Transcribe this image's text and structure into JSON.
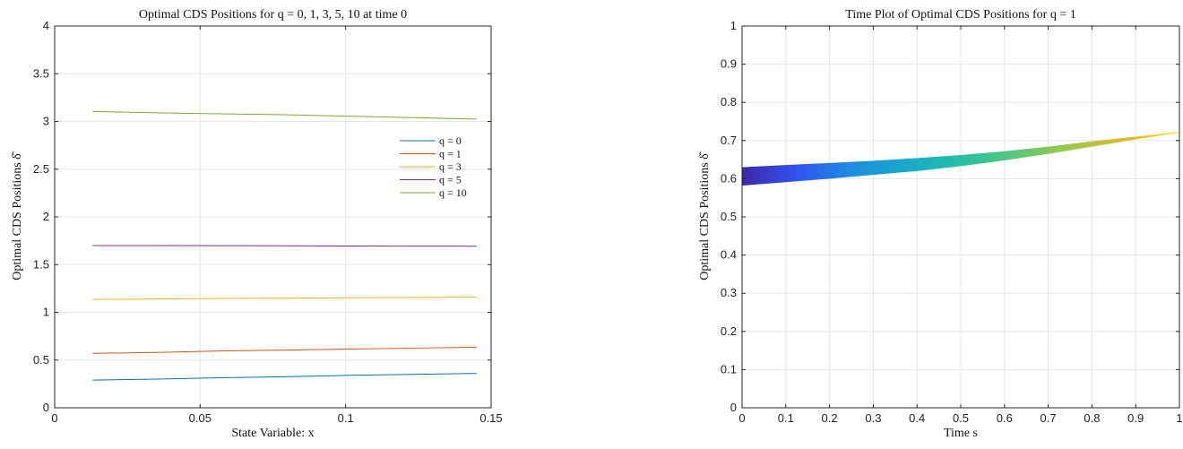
{
  "chart_data": [
    {
      "type": "line",
      "title": "Optimal CDS Positions for q = 0, 1, 3, 5, 10 at time 0",
      "xlabel": "State Variable: x",
      "ylabel": "Optimal CDS Positions δ̂",
      "xlim": [
        0,
        0.15
      ],
      "ylim": [
        0,
        4
      ],
      "xticks": [
        "0",
        "0.05",
        "0.1",
        "0.15"
      ],
      "xtick_values": [
        0,
        0.05,
        0.1,
        0.15
      ],
      "yticks": [
        "0",
        "0.5",
        "1",
        "1.5",
        "2",
        "2.5",
        "3",
        "3.5",
        "4"
      ],
      "ytick_values": [
        0,
        0.5,
        1,
        1.5,
        2,
        2.5,
        3,
        3.5,
        4
      ],
      "grid": true,
      "legend_position": "right",
      "x": [
        0.013,
        0.035,
        0.057,
        0.079,
        0.101,
        0.123,
        0.145
      ],
      "series": [
        {
          "name": "q = 0",
          "color": "#0072bd",
          "values": [
            0.29,
            0.3,
            0.315,
            0.325,
            0.34,
            0.35,
            0.36
          ]
        },
        {
          "name": "q = 1",
          "color": "#d95319",
          "values": [
            0.57,
            0.58,
            0.595,
            0.605,
            0.615,
            0.625,
            0.635
          ]
        },
        {
          "name": "q = 3",
          "color": "#edb120",
          "values": [
            1.135,
            1.14,
            1.145,
            1.148,
            1.152,
            1.156,
            1.16
          ]
        },
        {
          "name": "q = 5",
          "color": "#7e2f8e",
          "values": [
            1.7,
            1.7,
            1.698,
            1.697,
            1.695,
            1.694,
            1.693
          ]
        },
        {
          "name": "q = 10",
          "color": "#77ac30",
          "values": [
            3.105,
            3.09,
            3.08,
            3.07,
            3.055,
            3.04,
            3.025
          ]
        }
      ]
    },
    {
      "type": "area",
      "title": "Time Plot of Optimal CDS Positions for q = 1",
      "xlabel": "Time s",
      "ylabel": "Optimal CDS Positions δ̂",
      "xlim": [
        0,
        1
      ],
      "ylim": [
        0,
        1
      ],
      "xticks": [
        "0",
        "0.1",
        "0.2",
        "0.3",
        "0.4",
        "0.5",
        "0.6",
        "0.7",
        "0.8",
        "0.9",
        "1"
      ],
      "xtick_values": [
        0,
        0.1,
        0.2,
        0.3,
        0.4,
        0.5,
        0.6,
        0.7,
        0.8,
        0.9,
        1
      ],
      "yticks": [
        "0",
        "0.1",
        "0.2",
        "0.3",
        "0.4",
        "0.5",
        "0.6",
        "0.7",
        "0.8",
        "0.9",
        "1"
      ],
      "ytick_values": [
        0,
        0.1,
        0.2,
        0.3,
        0.4,
        0.5,
        0.6,
        0.7,
        0.8,
        0.9,
        1
      ],
      "grid": true,
      "x": [
        0,
        0.1,
        0.2,
        0.3,
        0.4,
        0.5,
        0.6,
        0.7,
        0.8,
        0.9,
        1.0
      ],
      "upper": [
        0.63,
        0.636,
        0.641,
        0.647,
        0.654,
        0.662,
        0.672,
        0.684,
        0.698,
        0.71,
        0.723
      ],
      "lower": [
        0.582,
        0.591,
        0.6,
        0.61,
        0.62,
        0.633,
        0.648,
        0.665,
        0.684,
        0.703,
        0.721
      ],
      "colormap": [
        "#3e26a8",
        "#2f55f0",
        "#1f8ddf",
        "#16aac9",
        "#26bfa4",
        "#59c87a",
        "#9ec94a",
        "#e0b82c",
        "#f9db22"
      ]
    }
  ]
}
